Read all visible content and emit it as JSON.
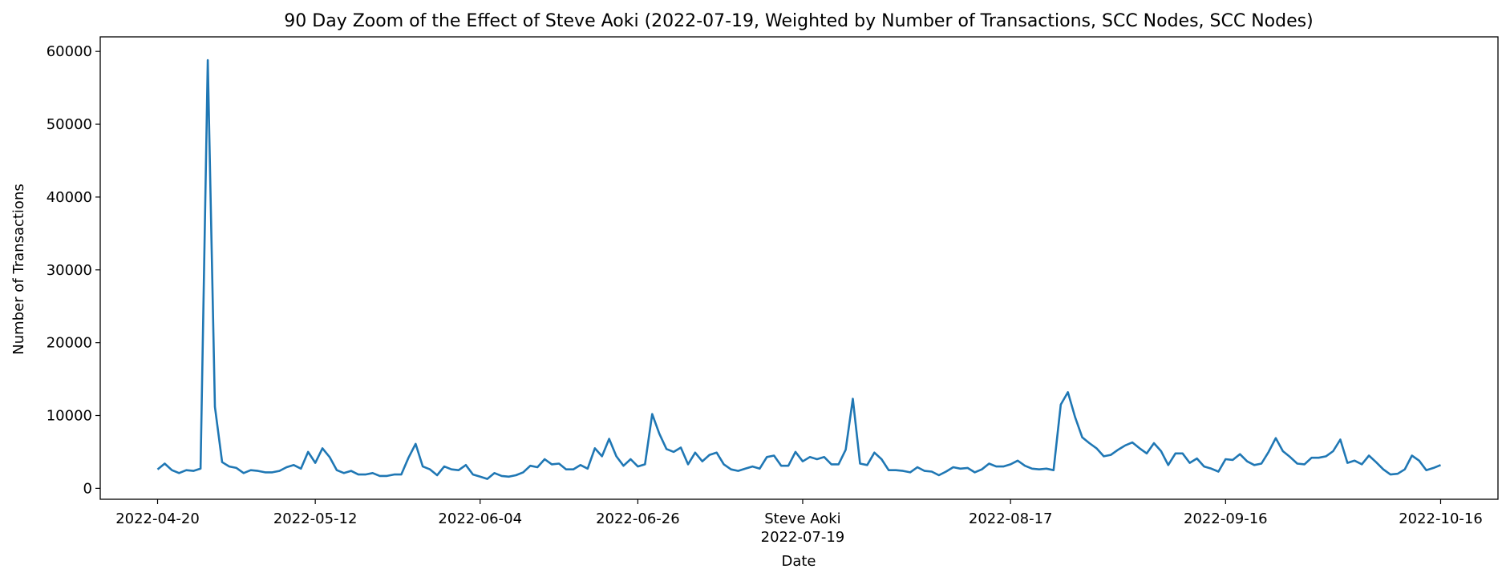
{
  "chart_data": {
    "type": "line",
    "title": "90 Day Zoom of the Effect of Steve Aoki (2022-07-19, Weighted by Number of Transactions, SCC Nodes, SCC Nodes)",
    "xlabel": "Date",
    "ylabel": "Number of Transactions",
    "xlim": [
      "2022-04-12",
      "2022-10-24"
    ],
    "ylim": [
      -1500,
      62000
    ],
    "x_ticks": [
      {
        "date": "2022-04-20",
        "label": "2022-04-20",
        "sub": ""
      },
      {
        "date": "2022-05-12",
        "label": "2022-05-12",
        "sub": ""
      },
      {
        "date": "2022-06-04",
        "label": "2022-06-04",
        "sub": ""
      },
      {
        "date": "2022-06-26",
        "label": "2022-06-26",
        "sub": ""
      },
      {
        "date": "2022-07-19",
        "label": "Steve Aoki",
        "sub": "2022-07-19"
      },
      {
        "date": "2022-08-17",
        "label": "2022-08-17",
        "sub": ""
      },
      {
        "date": "2022-09-16",
        "label": "2022-09-16",
        "sub": ""
      },
      {
        "date": "2022-10-16",
        "label": "2022-10-16",
        "sub": ""
      }
    ],
    "y_ticks": [
      0,
      10000,
      20000,
      30000,
      40000,
      50000,
      60000
    ],
    "grid": false,
    "line_color": "#1f77b4",
    "series": [
      {
        "x_start": "2022-04-20",
        "x_step_days": 1,
        "values": [
          2600,
          3400,
          2500,
          2100,
          2500,
          2400,
          2700,
          58800,
          11200,
          3600,
          3000,
          2800,
          2100,
          2500,
          2400,
          2200,
          2200,
          2400,
          2900,
          3200,
          2700,
          5000,
          3500,
          5500,
          4300,
          2500,
          2100,
          2400,
          1900,
          1900,
          2100,
          1700,
          1700,
          1900,
          1900,
          4200,
          6100,
          3000,
          2600,
          1800,
          3000,
          2600,
          2500,
          3200,
          1900,
          1600,
          1300,
          2100,
          1700,
          1600,
          1800,
          2200,
          3100,
          2900,
          4000,
          3300,
          3400,
          2600,
          2600,
          3200,
          2700,
          5500,
          4400,
          6800,
          4400,
          3100,
          4000,
          3000,
          3300,
          10200,
          7500,
          5400,
          5000,
          5600,
          3300,
          4900,
          3700,
          4600,
          4900,
          3300,
          2600,
          2400,
          2700,
          3000,
          2700,
          4300,
          4500,
          3100,
          3100,
          5000,
          3700,
          4300,
          4000,
          4300,
          3300,
          3300,
          5300,
          12300,
          3400,
          3200,
          4900,
          4000,
          2500,
          2500,
          2400,
          2200,
          2900,
          2400,
          2300,
          1800,
          2300,
          2900,
          2700,
          2800,
          2200,
          2600,
          3400,
          3000,
          3000,
          3300,
          3800,
          3100,
          2700,
          2600,
          2700,
          2500,
          11500,
          13200,
          9800,
          7000,
          6200,
          5500,
          4400,
          4600,
          5300,
          5900,
          6300,
          5500,
          4800,
          6200,
          5100,
          3200,
          4800,
          4800,
          3500,
          4100,
          3000,
          2700,
          2300,
          4000,
          3900,
          4700,
          3700,
          3200,
          3400,
          5000,
          6900,
          5100,
          4300,
          3400,
          3300,
          4200,
          4200,
          4400,
          5100,
          6700,
          3500,
          3800,
          3300,
          4500,
          3600,
          2600,
          1900,
          2000,
          2600,
          4500,
          3800,
          2500,
          2800,
          3200
        ]
      }
    ]
  }
}
